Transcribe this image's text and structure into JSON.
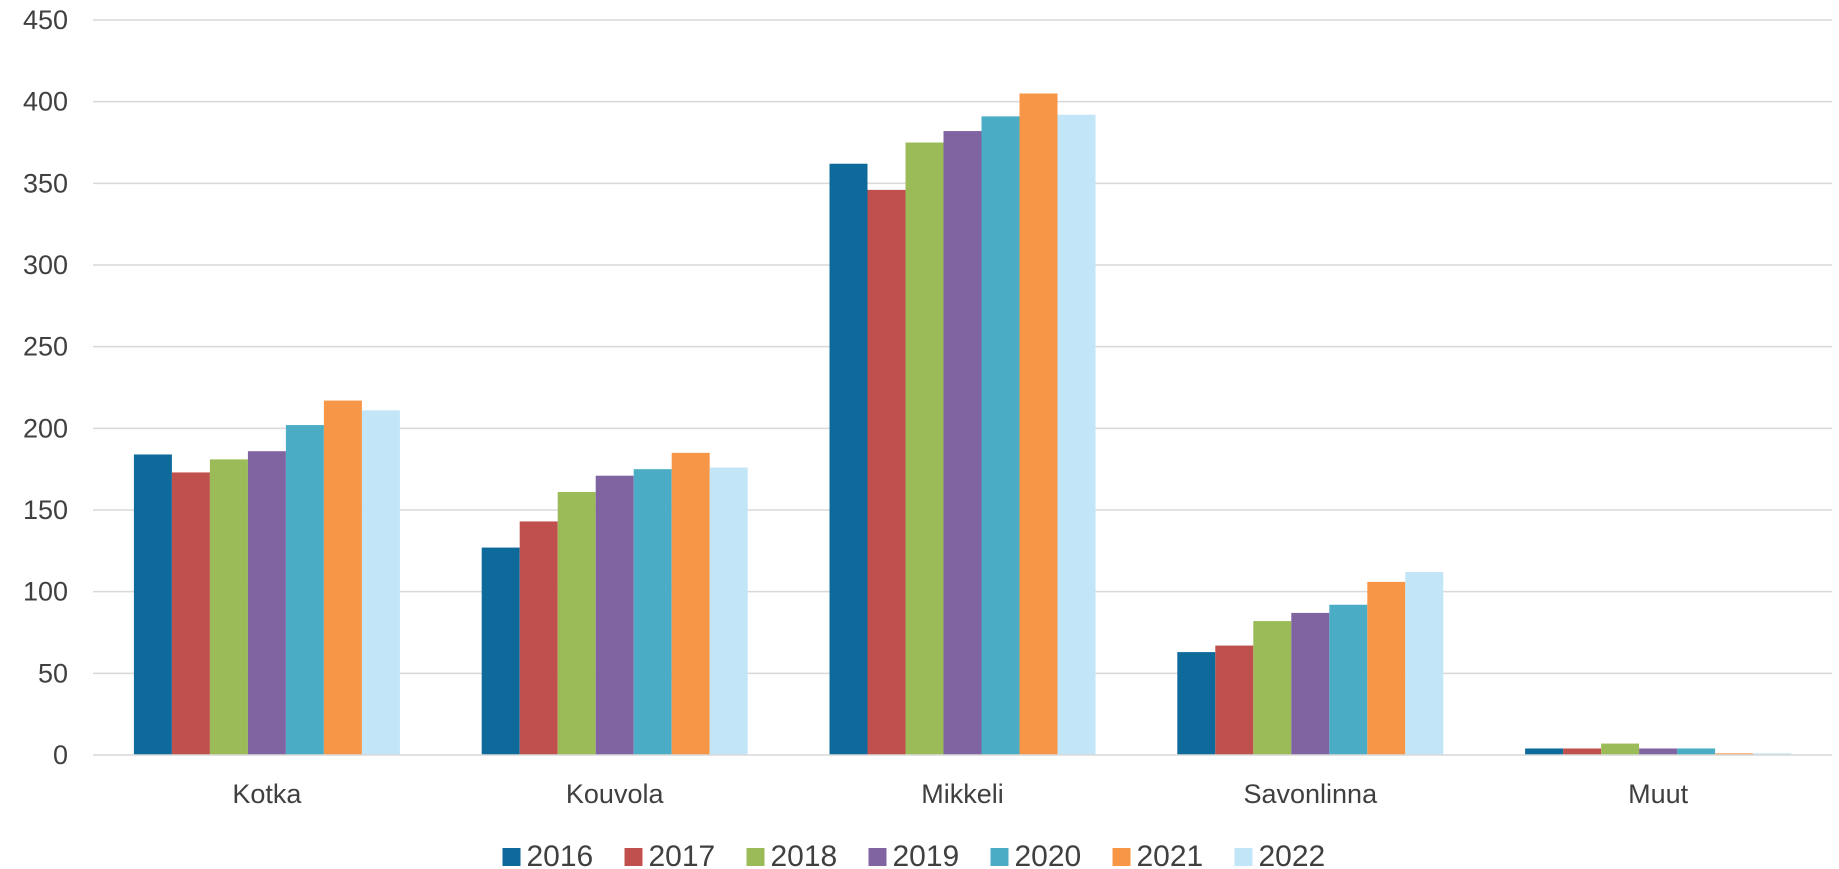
{
  "chart_data": {
    "type": "bar",
    "title": "",
    "xlabel": "",
    "ylabel": "",
    "ylim": [
      0,
      450
    ],
    "yticks": [
      "0",
      "50",
      "100",
      "150",
      "200",
      "250",
      "300",
      "350",
      "400",
      "450"
    ],
    "grid": true,
    "legend_position": "bottom",
    "categories": [
      "Kotka",
      "Kouvola",
      "Mikkeli",
      "Savonlinna",
      "Muut"
    ],
    "series": [
      {
        "name": "2016",
        "color": "#0F6A9C",
        "values": [
          184,
          127,
          362,
          63,
          4
        ]
      },
      {
        "name": "2017",
        "color": "#C0504D",
        "values": [
          173,
          143,
          346,
          67,
          4
        ]
      },
      {
        "name": "2018",
        "color": "#9BBB59",
        "values": [
          181,
          161,
          375,
          82,
          7
        ]
      },
      {
        "name": "2019",
        "color": "#8064A2",
        "values": [
          186,
          171,
          382,
          87,
          4
        ]
      },
      {
        "name": "2020",
        "color": "#4BACC6",
        "values": [
          202,
          175,
          391,
          92,
          4
        ]
      },
      {
        "name": "2021",
        "color": "#F79646",
        "values": [
          217,
          185,
          405,
          106,
          1
        ]
      },
      {
        "name": "2022",
        "color": "#C2E5F7",
        "values": [
          211,
          176,
          392,
          112,
          1
        ]
      }
    ]
  }
}
